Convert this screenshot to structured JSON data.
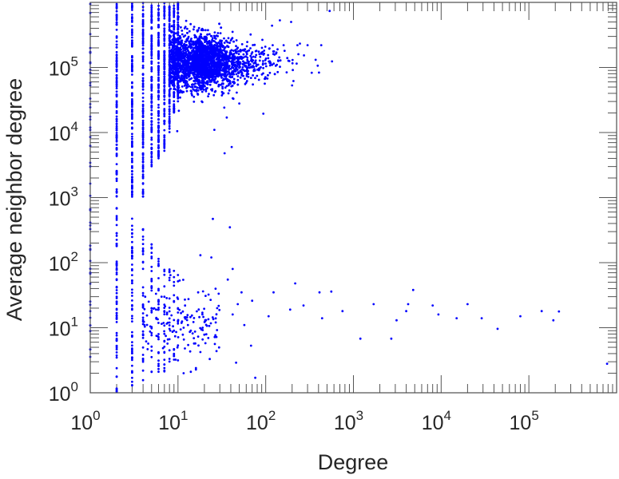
{
  "chart_data": {
    "type": "scatter",
    "title": "",
    "xlabel": "Degree",
    "ylabel": "Average neighbor degree",
    "xscale": "log",
    "yscale": "log",
    "xlim": [
      1,
      1000000
    ],
    "ylim": [
      1,
      1000000
    ],
    "grid": false,
    "marker_color": "#0000ff",
    "x_ticks": [
      {
        "base": "10",
        "exp": "0",
        "value": 1
      },
      {
        "base": "10",
        "exp": "1",
        "value": 10
      },
      {
        "base": "10",
        "exp": "2",
        "value": 100
      },
      {
        "base": "10",
        "exp": "3",
        "value": 1000
      },
      {
        "base": "10",
        "exp": "4",
        "value": 10000
      },
      {
        "base": "10",
        "exp": "5",
        "value": 100000
      }
    ],
    "y_ticks": [
      {
        "base": "10",
        "exp": "0",
        "value": 1
      },
      {
        "base": "10",
        "exp": "1",
        "value": 10
      },
      {
        "base": "10",
        "exp": "2",
        "value": 100
      },
      {
        "base": "10",
        "exp": "3",
        "value": 1000
      },
      {
        "base": "10",
        "exp": "4",
        "value": 10000
      },
      {
        "base": "10",
        "exp": "5",
        "value": 100000
      }
    ],
    "integer_degree_columns": [
      {
        "x": 1,
        "ranges": [
          [
            1,
            1000000,
            50
          ]
        ]
      },
      {
        "x": 2,
        "ranges": [
          [
            1,
            700,
            70
          ],
          [
            1000,
            1000000,
            120
          ]
        ]
      },
      {
        "x": 3,
        "ranges": [
          [
            1,
            500,
            60
          ],
          [
            1000,
            1000000,
            120
          ]
        ]
      },
      {
        "x": 4,
        "ranges": [
          [
            1.5,
            400,
            40
          ],
          [
            1000,
            1000000,
            120
          ]
        ]
      },
      {
        "x": 5,
        "ranges": [
          [
            2,
            200,
            30
          ],
          [
            3000,
            1000000,
            120
          ]
        ]
      },
      {
        "x": 6,
        "ranges": [
          [
            2,
            150,
            25
          ],
          [
            4000,
            1000000,
            120
          ]
        ]
      },
      {
        "x": 7,
        "ranges": [
          [
            2,
            120,
            20
          ],
          [
            5000,
            1000000,
            120
          ]
        ]
      },
      {
        "x": 8,
        "ranges": [
          [
            3,
            100,
            15
          ],
          [
            10000,
            1000000,
            120
          ]
        ]
      },
      {
        "x": 9,
        "ranges": [
          [
            3,
            100,
            12
          ],
          [
            20000,
            1000000,
            100
          ]
        ]
      },
      {
        "x": 10,
        "ranges": [
          [
            3,
            80,
            10
          ],
          [
            30000,
            1000000,
            100
          ]
        ]
      }
    ],
    "dense_cloud_upper": {
      "x_min": 8,
      "x_center": 16,
      "x_spread_decades": 0.3,
      "y_center": 120000,
      "y_spread_decades": 0.22,
      "count": 2600
    },
    "dense_cloud_lower": {
      "x_min": 4,
      "x_max": 30,
      "y_center": 13,
      "y_spread_decades": 0.28,
      "count": 130
    },
    "points": [
      [
        535,
        740000
      ],
      [
        570,
        124000
      ],
      [
        335,
        83000
      ],
      [
        200,
        53000
      ],
      [
        94,
        19500
      ],
      [
        50,
        28000
      ],
      [
        36,
        17000
      ],
      [
        41,
        6000
      ],
      [
        34,
        4800
      ],
      [
        26,
        11000
      ],
      [
        195,
        500000
      ],
      [
        145,
        530000
      ],
      [
        118,
        440000
      ],
      [
        120,
        220000
      ],
      [
        160,
        220000
      ],
      [
        230,
        220000
      ],
      [
        300,
        220000
      ],
      [
        430,
        220000
      ],
      [
        236,
        160000
      ],
      [
        137,
        85000
      ],
      [
        134,
        110000
      ],
      [
        780000,
        2.8
      ],
      [
        220000,
        17.8
      ],
      [
        190000,
        13
      ],
      [
        140000,
        18
      ],
      [
        80000,
        15
      ],
      [
        44000,
        9.6
      ],
      [
        29000,
        14
      ],
      [
        20000,
        23
      ],
      [
        15000,
        14
      ],
      [
        8000,
        22
      ],
      [
        9300,
        16
      ],
      [
        4800,
        38
      ],
      [
        4200,
        23
      ],
      [
        4000,
        18
      ],
      [
        3100,
        13
      ],
      [
        2700,
        6.8
      ],
      [
        1700,
        23
      ],
      [
        1200,
        6.8
      ],
      [
        750,
        18
      ],
      [
        560,
        36
      ],
      [
        440,
        14
      ],
      [
        410,
        35
      ],
      [
        270,
        22
      ],
      [
        217,
        48
      ],
      [
        190,
        19
      ],
      [
        123,
        35
      ],
      [
        108,
        15
      ],
      [
        70,
        26
      ],
      [
        48,
        23
      ],
      [
        57,
        11
      ],
      [
        46,
        2.9
      ],
      [
        42,
        80
      ],
      [
        68,
        5.3
      ],
      [
        23,
        3.3
      ],
      [
        24,
        120
      ],
      [
        39,
        350
      ],
      [
        25,
        470
      ],
      [
        18,
        130
      ],
      [
        16,
        2.4
      ],
      [
        14,
        2.1
      ],
      [
        7,
        2.2
      ],
      [
        11.6,
        2
      ],
      [
        7.6,
        5.7
      ],
      [
        76,
        1.7
      ],
      [
        53,
        35
      ],
      [
        37,
        55
      ],
      [
        42,
        16
      ],
      [
        28,
        20
      ],
      [
        19,
        16
      ],
      [
        17,
        35
      ],
      [
        11.6,
        10
      ],
      [
        14,
        9
      ],
      [
        10,
        20
      ],
      [
        9,
        25
      ],
      [
        9,
        9
      ],
      [
        12,
        27
      ],
      [
        13,
        11
      ],
      [
        8,
        12
      ],
      [
        7,
        18
      ],
      [
        6.5,
        30
      ],
      [
        9,
        60
      ]
    ]
  }
}
